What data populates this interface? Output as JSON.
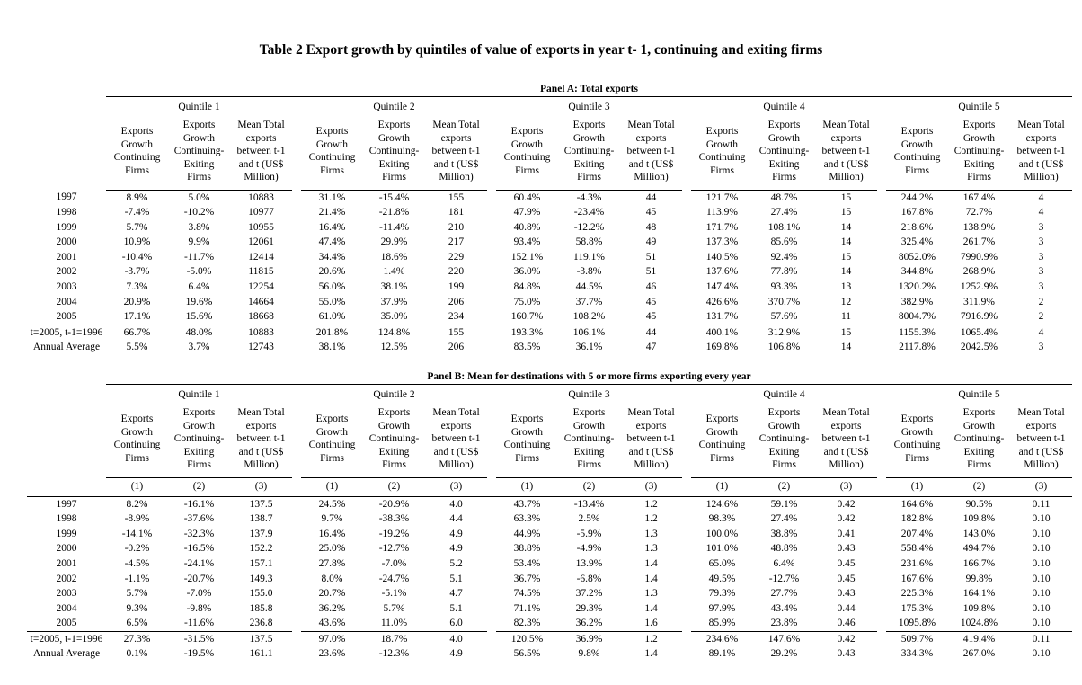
{
  "page_title": "Table 2 Export growth by quintiles of value of exports in year t- 1, continuing and exiting firms",
  "quintile_labels": [
    "Quintile 1",
    "Quintile 2",
    "Quintile 3",
    "Quintile 4",
    "Quintile 5"
  ],
  "column_headers": [
    "Exports\nGrowth\nContinuing\nFirms",
    "Exports\nGrowth\nContinuing-\nExiting\nFirms",
    "Mean Total\nexports\nbetween t-1\nand t (US$\nMillion)"
  ],
  "panels": [
    {
      "title": "Panel A: Total exports",
      "column_numbers": null,
      "rows": [
        {
          "label": "1997",
          "values": [
            "8.9%",
            "5.0%",
            "10883",
            "31.1%",
            "-15.4%",
            "155",
            "60.4%",
            "-4.3%",
            "44",
            "121.7%",
            "48.7%",
            "15",
            "244.2%",
            "167.4%",
            "4"
          ]
        },
        {
          "label": "1998",
          "values": [
            "-7.4%",
            "-10.2%",
            "10977",
            "21.4%",
            "-21.8%",
            "181",
            "47.9%",
            "-23.4%",
            "45",
            "113.9%",
            "27.4%",
            "15",
            "167.8%",
            "72.7%",
            "4"
          ]
        },
        {
          "label": "1999",
          "values": [
            "5.7%",
            "3.8%",
            "10955",
            "16.4%",
            "-11.4%",
            "210",
            "40.8%",
            "-12.2%",
            "48",
            "171.7%",
            "108.1%",
            "14",
            "218.6%",
            "138.9%",
            "3"
          ]
        },
        {
          "label": "2000",
          "values": [
            "10.9%",
            "9.9%",
            "12061",
            "47.4%",
            "29.9%",
            "217",
            "93.4%",
            "58.8%",
            "49",
            "137.3%",
            "85.6%",
            "14",
            "325.4%",
            "261.7%",
            "3"
          ]
        },
        {
          "label": "2001",
          "values": [
            "-10.4%",
            "-11.7%",
            "12414",
            "34.4%",
            "18.6%",
            "229",
            "152.1%",
            "119.1%",
            "51",
            "140.5%",
            "92.4%",
            "15",
            "8052.0%",
            "7990.9%",
            "3"
          ]
        },
        {
          "label": "2002",
          "values": [
            "-3.7%",
            "-5.0%",
            "11815",
            "20.6%",
            "1.4%",
            "220",
            "36.0%",
            "-3.8%",
            "51",
            "137.6%",
            "77.8%",
            "14",
            "344.8%",
            "268.9%",
            "3"
          ]
        },
        {
          "label": "2003",
          "values": [
            "7.3%",
            "6.4%",
            "12254",
            "56.0%",
            "38.1%",
            "199",
            "84.8%",
            "44.5%",
            "46",
            "147.4%",
            "93.3%",
            "13",
            "1320.2%",
            "1252.9%",
            "3"
          ]
        },
        {
          "label": "2004",
          "values": [
            "20.9%",
            "19.6%",
            "14664",
            "55.0%",
            "37.9%",
            "206",
            "75.0%",
            "37.7%",
            "45",
            "426.6%",
            "370.7%",
            "12",
            "382.9%",
            "311.9%",
            "2"
          ]
        },
        {
          "label": "2005",
          "values": [
            "17.1%",
            "15.6%",
            "18668",
            "61.0%",
            "35.0%",
            "234",
            "160.7%",
            "108.2%",
            "45",
            "131.7%",
            "57.6%",
            "11",
            "8004.7%",
            "7916.9%",
            "2"
          ]
        }
      ],
      "summary_rows": [
        {
          "label": "t=2005, t-1=1996",
          "values": [
            "66.7%",
            "48.0%",
            "10883",
            "201.8%",
            "124.8%",
            "155",
            "193.3%",
            "106.1%",
            "44",
            "400.1%",
            "312.9%",
            "15",
            "1155.3%",
            "1065.4%",
            "4"
          ]
        },
        {
          "label": "Annual Average",
          "values": [
            "5.5%",
            "3.7%",
            "12743",
            "38.1%",
            "12.5%",
            "206",
            "83.5%",
            "36.1%",
            "47",
            "169.8%",
            "106.8%",
            "14",
            "2117.8%",
            "2042.5%",
            "3"
          ]
        }
      ]
    },
    {
      "title": "Panel B: Mean for destinations with 5 or more firms exporting every year",
      "column_numbers": [
        "(1)",
        "(2)",
        "(3)"
      ],
      "rows": [
        {
          "label": "1997",
          "values": [
            "8.2%",
            "-16.1%",
            "137.5",
            "24.5%",
            "-20.9%",
            "4.0",
            "43.7%",
            "-13.4%",
            "1.2",
            "124.6%",
            "59.1%",
            "0.42",
            "164.6%",
            "90.5%",
            "0.11"
          ]
        },
        {
          "label": "1998",
          "values": [
            "-8.9%",
            "-37.6%",
            "138.7",
            "9.7%",
            "-38.3%",
            "4.4",
            "63.3%",
            "2.5%",
            "1.2",
            "98.3%",
            "27.4%",
            "0.42",
            "182.8%",
            "109.8%",
            "0.10"
          ]
        },
        {
          "label": "1999",
          "values": [
            "-14.1%",
            "-32.3%",
            "137.9",
            "16.4%",
            "-19.2%",
            "4.9",
            "44.9%",
            "-5.9%",
            "1.3",
            "100.0%",
            "38.8%",
            "0.41",
            "207.4%",
            "143.0%",
            "0.10"
          ]
        },
        {
          "label": "2000",
          "values": [
            "-0.2%",
            "-16.5%",
            "152.2",
            "25.0%",
            "-12.7%",
            "4.9",
            "38.8%",
            "-4.9%",
            "1.3",
            "101.0%",
            "48.8%",
            "0.43",
            "558.4%",
            "494.7%",
            "0.10"
          ]
        },
        {
          "label": "2001",
          "values": [
            "-4.5%",
            "-24.1%",
            "157.1",
            "27.8%",
            "-7.0%",
            "5.2",
            "53.4%",
            "13.9%",
            "1.4",
            "65.0%",
            "6.4%",
            "0.45",
            "231.6%",
            "166.7%",
            "0.10"
          ]
        },
        {
          "label": "2002",
          "values": [
            "-1.1%",
            "-20.7%",
            "149.3",
            "8.0%",
            "-24.7%",
            "5.1",
            "36.7%",
            "-6.8%",
            "1.4",
            "49.5%",
            "-12.7%",
            "0.45",
            "167.6%",
            "99.8%",
            "0.10"
          ]
        },
        {
          "label": "2003",
          "values": [
            "5.7%",
            "-7.0%",
            "155.0",
            "20.7%",
            "-5.1%",
            "4.7",
            "74.5%",
            "37.2%",
            "1.3",
            "79.3%",
            "27.7%",
            "0.43",
            "225.3%",
            "164.1%",
            "0.10"
          ]
        },
        {
          "label": "2004",
          "values": [
            "9.3%",
            "-9.8%",
            "185.8",
            "36.2%",
            "5.7%",
            "5.1",
            "71.1%",
            "29.3%",
            "1.4",
            "97.9%",
            "43.4%",
            "0.44",
            "175.3%",
            "109.8%",
            "0.10"
          ]
        },
        {
          "label": "2005",
          "values": [
            "6.5%",
            "-11.6%",
            "236.8",
            "43.6%",
            "11.0%",
            "6.0",
            "82.3%",
            "36.2%",
            "1.6",
            "85.9%",
            "23.8%",
            "0.46",
            "1095.8%",
            "1024.8%",
            "0.10"
          ]
        }
      ],
      "summary_rows": [
        {
          "label": "t=2005, t-1=1996",
          "values": [
            "27.3%",
            "-31.5%",
            "137.5",
            "97.0%",
            "18.7%",
            "4.0",
            "120.5%",
            "36.9%",
            "1.2",
            "234.6%",
            "147.6%",
            "0.42",
            "509.7%",
            "419.4%",
            "0.11"
          ]
        },
        {
          "label": "Annual Average",
          "values": [
            "0.1%",
            "-19.5%",
            "161.1",
            "23.6%",
            "-12.3%",
            "4.9",
            "56.5%",
            "9.8%",
            "1.4",
            "89.1%",
            "29.2%",
            "0.43",
            "334.3%",
            "267.0%",
            "0.10"
          ]
        }
      ]
    }
  ]
}
